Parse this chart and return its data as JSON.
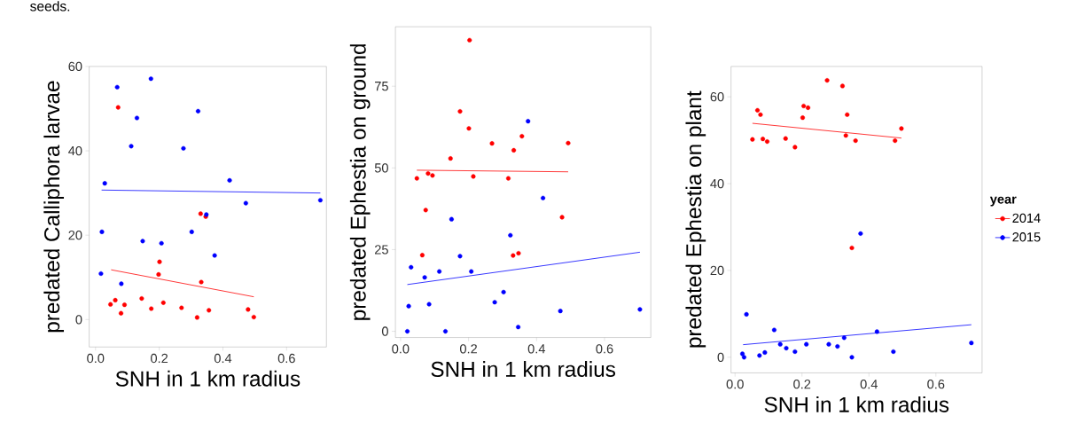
{
  "chart_data": [
    {
      "type": "scatter",
      "xlabel": "SNH in 1 km radius",
      "ylabel": "predated Calliphora larvae",
      "annotations": [
        "seeds."
      ],
      "xlim": [
        -0.02,
        0.725
      ],
      "ylim": [
        -6.5,
        60
      ],
      "xticks": [
        {
          "value": 0,
          "label": "0.0"
        },
        {
          "value": 0.2,
          "label": "0.2"
        },
        {
          "value": 0.4,
          "label": "0.4"
        },
        {
          "value": 0.6,
          "label": "0.6"
        }
      ],
      "yticks": [
        0,
        20,
        40,
        60
      ],
      "marker": "circle",
      "legend": false,
      "series": [
        {
          "color": "#ff0000",
          "x": [
            0.071,
            0.047,
            0.062,
            0.08,
            0.091,
            0.145,
            0.175,
            0.201,
            0.198,
            0.213,
            0.27,
            0.319,
            0.33,
            0.346,
            0.332,
            0.356,
            0.479,
            0.497
          ],
          "values": [
            50.3,
            3.6,
            4.6,
            1.5,
            3.5,
            5.0,
            2.6,
            13.7,
            10.7,
            4.0,
            2.8,
            0.5,
            25.1,
            24.4,
            8.9,
            2.2,
            2.4,
            0.6
          ]
        },
        {
          "color": "#0000ff",
          "x": [
            0.068,
            0.174,
            0.13,
            0.112,
            0.029,
            0.02,
            0.017,
            0.081,
            0.148,
            0.207,
            0.276,
            0.322,
            0.302,
            0.348,
            0.374,
            0.421,
            0.472,
            0.706
          ],
          "values": [
            55.1,
            57.1,
            47.8,
            41.1,
            32.3,
            20.8,
            10.9,
            8.5,
            18.6,
            18.1,
            40.6,
            49.4,
            20.8,
            24.9,
            15.2,
            33.0,
            27.6,
            28.3
          ]
        },
        {
          "type": "line",
          "marker": "none",
          "color": "#ff0000",
          "x": [
            0.049,
            0.497
          ],
          "values": [
            11.8,
            5.4
          ]
        },
        {
          "type": "line",
          "marker": "none",
          "color": "#0000ff",
          "x": [
            0.019,
            0.706
          ],
          "values": [
            30.7,
            30.0
          ]
        }
      ]
    },
    {
      "type": "scatter",
      "xlabel": "SNH in 1 km radius",
      "ylabel": "predated Ephestia on ground",
      "xlim": [
        -0.015,
        0.736
      ],
      "ylim": [
        -1.9,
        93.2
      ],
      "xticks": [
        {
          "value": 0,
          "label": "0.0"
        },
        {
          "value": 0.2,
          "label": "0.2"
        },
        {
          "value": 0.4,
          "label": "0.4"
        },
        {
          "value": 0.6,
          "label": "0.6"
        }
      ],
      "yticks": [
        0,
        25,
        50,
        75
      ],
      "marker": "circle",
      "legend": false,
      "series": [
        {
          "color": "#ff0000",
          "x": [
            0.203,
            0.048,
            0.081,
            0.094,
            0.074,
            0.064,
            0.147,
            0.175,
            0.201,
            0.214,
            0.269,
            0.317,
            0.333,
            0.357,
            0.331,
            0.347,
            0.475,
            0.493
          ],
          "values": [
            89.1,
            46.8,
            48.3,
            47.7,
            37.1,
            23.3,
            52.9,
            67.3,
            62.1,
            47.4,
            57.5,
            46.8,
            55.4,
            59.7,
            23.2,
            23.9,
            34.9,
            57.6
          ]
        },
        {
          "color": "#0000ff",
          "x": [
            0.02,
            0.024,
            0.031,
            0.071,
            0.084,
            0.114,
            0.132,
            0.15,
            0.175,
            0.208,
            0.277,
            0.303,
            0.323,
            0.346,
            0.375,
            0.419,
            0.47,
            0.704
          ],
          "values": [
            0,
            7.7,
            19.6,
            16.5,
            8.3,
            18.3,
            0,
            34.3,
            23.0,
            18.3,
            8.9,
            12.0,
            29.4,
            1.3,
            64.3,
            40.8,
            6.2,
            6.7
          ]
        },
        {
          "type": "line",
          "marker": "none",
          "color": "#ff0000",
          "x": [
            0.048,
            0.493
          ],
          "values": [
            49.3,
            48.8
          ]
        },
        {
          "type": "line",
          "marker": "none",
          "color": "#0000ff",
          "x": [
            0.02,
            0.704
          ],
          "values": [
            14.3,
            24.2
          ]
        }
      ]
    },
    {
      "type": "scatter",
      "xlabel": "SNH in 1 km radius",
      "ylabel": "predated Ephestia on plant",
      "legend_title": "year",
      "xlim": [
        -0.012,
        0.738
      ],
      "ylim": [
        -3.6,
        67
      ],
      "xticks": [
        {
          "value": 0,
          "label": "0.0"
        },
        {
          "value": 0.2,
          "label": "0.2"
        },
        {
          "value": 0.4,
          "label": "0.4"
        },
        {
          "value": 0.6,
          "label": "0.6"
        }
      ],
      "yticks": [
        0,
        20,
        40,
        60
      ],
      "marker": "circle",
      "legend": "right",
      "series": [
        {
          "name": "2014",
          "color": "#ff0000",
          "x": [
            0.052,
            0.067,
            0.076,
            0.083,
            0.096,
            0.151,
            0.179,
            0.202,
            0.205,
            0.218,
            0.275,
            0.321,
            0.335,
            0.331,
            0.349,
            0.36,
            0.478,
            0.497
          ],
          "values": [
            50.2,
            56.9,
            55.9,
            50.3,
            49.7,
            50.4,
            48.4,
            55.2,
            57.9,
            57.5,
            63.8,
            62.5,
            55.9,
            51.1,
            25.2,
            49.9,
            49.9,
            52.7
          ]
        },
        {
          "name": "2015",
          "color": "#0000ff",
          "x": [
            0.022,
            0.027,
            0.034,
            0.073,
            0.089,
            0.117,
            0.135,
            0.153,
            0.179,
            0.213,
            0.28,
            0.306,
            0.326,
            0.349,
            0.375,
            0.424,
            0.473,
            0.706
          ],
          "values": [
            0.8,
            0,
            9.9,
            0.4,
            1.1,
            6.3,
            3.0,
            2.1,
            1.3,
            3.0,
            3.0,
            2.5,
            4.5,
            0,
            28.5,
            5.9,
            1.3,
            3.3
          ]
        },
        {
          "type": "line",
          "marker": "none",
          "color": "#ff0000",
          "x": [
            0.052,
            0.497
          ],
          "values": [
            53.9,
            50.5
          ]
        },
        {
          "type": "line",
          "marker": "none",
          "color": "#0000ff",
          "x": [
            0.024,
            0.706
          ],
          "values": [
            2.9,
            7.5
          ]
        }
      ]
    }
  ]
}
